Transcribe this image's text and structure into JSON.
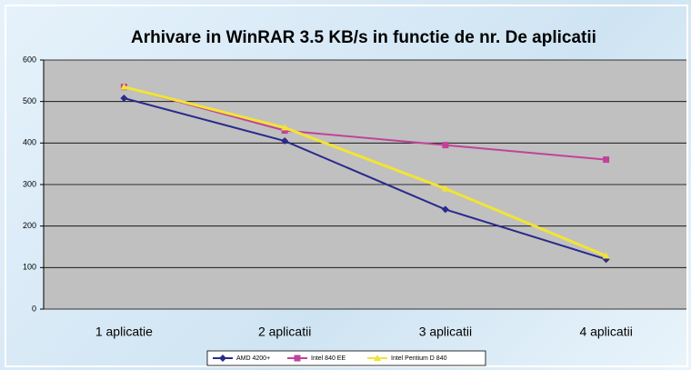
{
  "chart_data": {
    "type": "line",
    "title": "Arhivare in WinRAR 3.5 KB/s in functie de nr. De aplicatii",
    "categories": [
      "1 aplicatie",
      "2 aplicatii",
      "3 aplicatii",
      "4 aplicatii"
    ],
    "series": [
      {
        "name": "AMD 4200+",
        "color": "#2a2a8c",
        "marker": "diamond",
        "values": [
          508,
          405,
          240,
          120
        ]
      },
      {
        "name": "Intel 840 EE",
        "color": "#c2429a",
        "marker": "square",
        "values": [
          535,
          430,
          395,
          360
        ]
      },
      {
        "name": "Intel Pentium D 840",
        "color": "#f2e434",
        "marker": "triangle",
        "values": [
          535,
          437,
          290,
          128
        ]
      }
    ],
    "ylim": [
      0,
      600
    ],
    "yticks": [
      0,
      100,
      200,
      300,
      400,
      500,
      600
    ],
    "grid": true,
    "legend": "bottom"
  }
}
